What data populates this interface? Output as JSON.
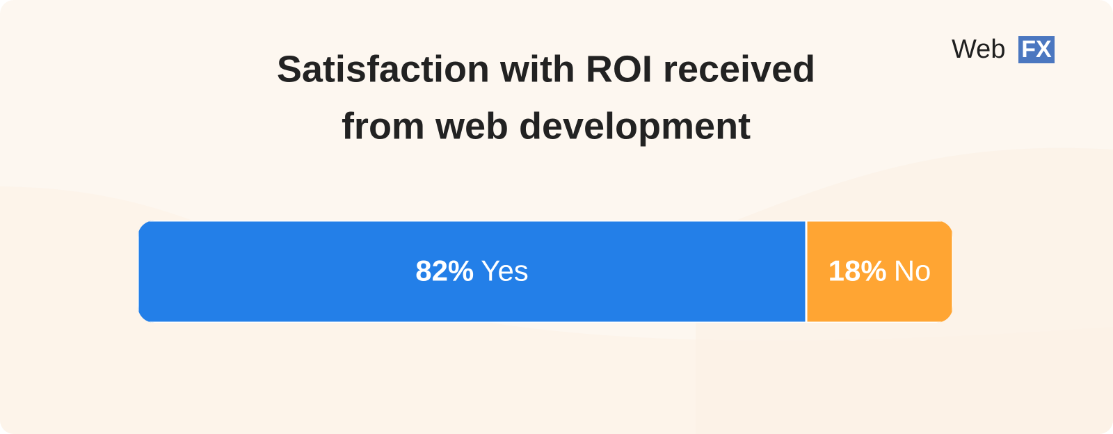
{
  "chart_data": {
    "type": "stacked-bar",
    "title": [
      "Satisfaction with ROI received",
      "from web development"
    ],
    "series": [
      {
        "name": "Yes",
        "color": "#237fe8",
        "values": [
          82
        ],
        "value_labels": [
          "82%"
        ]
      },
      {
        "name": "No",
        "color": "#ffa533",
        "values": [
          18
        ],
        "value_labels": [
          "18%"
        ]
      }
    ]
  },
  "logo": {
    "text": "Web",
    "badge": "FX"
  }
}
